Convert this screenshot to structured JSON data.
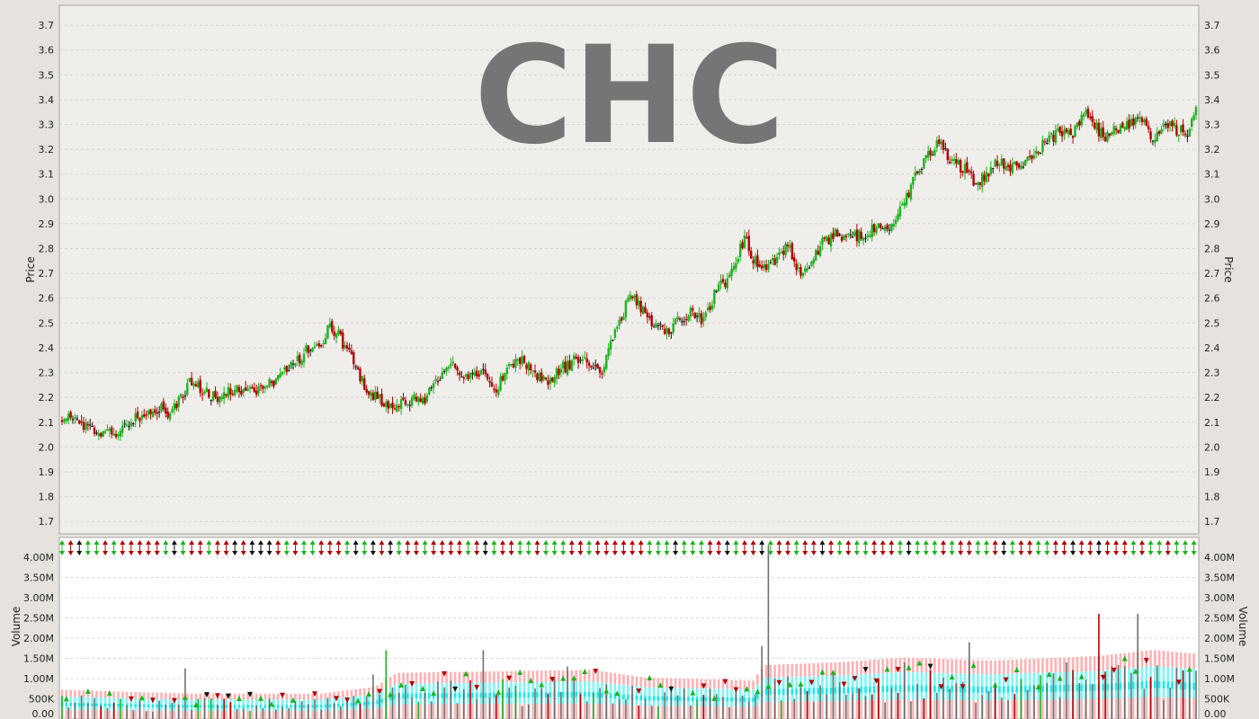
{
  "chart_data": [
    {
      "type": "candlestick",
      "watermark": "CHC",
      "ylabel": "Price",
      "ylim": [
        1.65,
        3.78
      ],
      "yticks": [
        "1.7",
        "1.8",
        "1.9",
        "2.0",
        "2.1",
        "2.2",
        "2.3",
        "2.4",
        "2.5",
        "2.6",
        "2.7",
        "2.8",
        "2.9",
        "3.0",
        "3.1",
        "3.2",
        "3.3",
        "3.4",
        "3.5",
        "3.6",
        "3.7"
      ],
      "grid": true,
      "colors": {
        "up": "#1db31d",
        "down": "#b30000",
        "flat": "#111111",
        "plot_bg": "#efeeeb",
        "grid": "#d2d0cc"
      },
      "close_path": [
        [
          0,
          2.1
        ],
        [
          5,
          2.12
        ],
        [
          10,
          2.09
        ],
        [
          18,
          2.04
        ],
        [
          25,
          2.06
        ],
        [
          32,
          2.1
        ],
        [
          38,
          2.14
        ],
        [
          45,
          2.16
        ],
        [
          50,
          2.13
        ],
        [
          55,
          2.2
        ],
        [
          60,
          2.27
        ],
        [
          65,
          2.22
        ],
        [
          72,
          2.2
        ],
        [
          78,
          2.22
        ],
        [
          85,
          2.24
        ],
        [
          92,
          2.23
        ],
        [
          100,
          2.27
        ],
        [
          108,
          2.34
        ],
        [
          115,
          2.41
        ],
        [
          120,
          2.4
        ],
        [
          124,
          2.49
        ],
        [
          128,
          2.45
        ],
        [
          133,
          2.37
        ],
        [
          138,
          2.28
        ],
        [
          143,
          2.22
        ],
        [
          148,
          2.18
        ],
        [
          153,
          2.16
        ],
        [
          160,
          2.18
        ],
        [
          168,
          2.2
        ],
        [
          175,
          2.28
        ],
        [
          182,
          2.33
        ],
        [
          188,
          2.27
        ],
        [
          195,
          2.3
        ],
        [
          200,
          2.22
        ],
        [
          206,
          2.3
        ],
        [
          212,
          2.36
        ],
        [
          218,
          2.3
        ],
        [
          225,
          2.27
        ],
        [
          232,
          2.32
        ],
        [
          240,
          2.36
        ],
        [
          245,
          2.33
        ],
        [
          250,
          2.31
        ],
        [
          255,
          2.45
        ],
        [
          260,
          2.55
        ],
        [
          264,
          2.62
        ],
        [
          268,
          2.55
        ],
        [
          274,
          2.5
        ],
        [
          280,
          2.46
        ],
        [
          286,
          2.52
        ],
        [
          292,
          2.55
        ],
        [
          297,
          2.5
        ],
        [
          302,
          2.62
        ],
        [
          308,
          2.68
        ],
        [
          312,
          2.74
        ],
        [
          316,
          2.85
        ],
        [
          320,
          2.76
        ],
        [
          324,
          2.72
        ],
        [
          330,
          2.75
        ],
        [
          336,
          2.82
        ],
        [
          340,
          2.7
        ],
        [
          346,
          2.73
        ],
        [
          352,
          2.82
        ],
        [
          358,
          2.86
        ],
        [
          365,
          2.84
        ],
        [
          372,
          2.86
        ],
        [
          378,
          2.9
        ],
        [
          384,
          2.88
        ],
        [
          390,
          2.98
        ],
        [
          395,
          3.1
        ],
        [
          400,
          3.17
        ],
        [
          406,
          3.22
        ],
        [
          412,
          3.15
        ],
        [
          418,
          3.12
        ],
        [
          423,
          3.05
        ],
        [
          428,
          3.1
        ],
        [
          434,
          3.15
        ],
        [
          440,
          3.12
        ],
        [
          446,
          3.14
        ],
        [
          452,
          3.2
        ],
        [
          458,
          3.25
        ],
        [
          464,
          3.28
        ],
        [
          468,
          3.26
        ],
        [
          474,
          3.36
        ],
        [
          478,
          3.3
        ],
        [
          482,
          3.25
        ],
        [
          488,
          3.28
        ],
        [
          494,
          3.3
        ],
        [
          500,
          3.32
        ],
        [
          505,
          3.25
        ],
        [
          510,
          3.3
        ],
        [
          516,
          3.28
        ],
        [
          521,
          3.27
        ],
        [
          525,
          3.38
        ]
      ],
      "max_index": 525
    },
    {
      "type": "bar",
      "ylabel": "Volume",
      "ylim": [
        0,
        4400000
      ],
      "yticks": [
        {
          "v": 0,
          "label": "0.00"
        },
        {
          "v": 500000,
          "label": "500K"
        },
        {
          "v": 1000000,
          "label": "1.00M"
        },
        {
          "v": 1500000,
          "label": "1.50M"
        },
        {
          "v": 2000000,
          "label": "2.00M"
        },
        {
          "v": 2500000,
          "label": "2.50M"
        },
        {
          "v": 3000000,
          "label": "3.00M"
        },
        {
          "v": 3500000,
          "label": "3.50M"
        },
        {
          "v": 4000000,
          "label": "4.00M"
        }
      ],
      "grid": true,
      "colors": {
        "bar": "#707070",
        "up": "#1db31d",
        "down": "#b30000",
        "band_outer": "#ffb0b3",
        "band_mid": "#7df5f5",
        "band_inner": "#1ce8e8",
        "plot_bg": "#ffffff"
      },
      "avg_volume_path": [
        [
          0,
          380000
        ],
        [
          60,
          330000
        ],
        [
          120,
          330000
        ],
        [
          145,
          420000
        ],
        [
          155,
          600000
        ],
        [
          200,
          620000
        ],
        [
          245,
          640000
        ],
        [
          270,
          540000
        ],
        [
          320,
          500000
        ],
        [
          325,
          700000
        ],
        [
          360,
          740000
        ],
        [
          390,
          800000
        ],
        [
          430,
          760000
        ],
        [
          480,
          820000
        ],
        [
          505,
          900000
        ],
        [
          525,
          850000
        ]
      ],
      "spikes": [
        {
          "i": 56,
          "v": 1250000
        },
        {
          "i": 143,
          "v": 1100000
        },
        {
          "i": 150,
          "v": 1700000
        },
        {
          "i": 196,
          "v": 1700000
        },
        {
          "i": 233,
          "v": 1300000
        },
        {
          "i": 327,
          "v": 4300000
        },
        {
          "i": 323,
          "v": 1800000
        },
        {
          "i": 420,
          "v": 1900000
        },
        {
          "i": 480,
          "v": 2600000
        },
        {
          "i": 498,
          "v": 2600000
        },
        {
          "i": 390,
          "v": 1400000
        },
        {
          "i": 465,
          "v": 1400000
        }
      ],
      "max_index": 525
    }
  ]
}
